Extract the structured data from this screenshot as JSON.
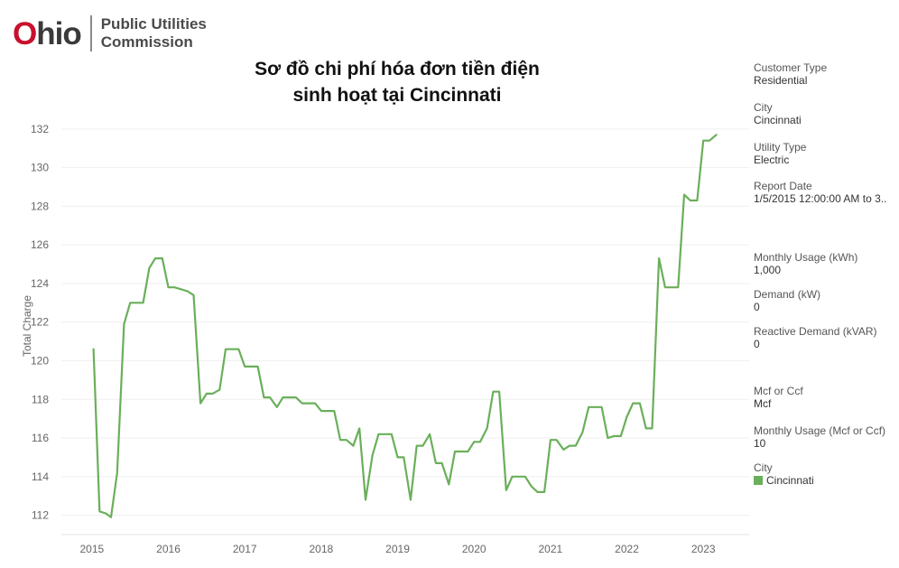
{
  "header": {
    "logo_word": "Ohio",
    "logo_line1": "Public Utilities",
    "logo_line2": "Commission"
  },
  "colors": {
    "series": "#6aaf5a",
    "logo_red": "#c8102e"
  },
  "filters": [
    {
      "label": "Customer Type",
      "value": "Residential"
    },
    {
      "label": "City",
      "value": "Cincinnati"
    },
    {
      "label": "Utility Type",
      "value": "Electric"
    },
    {
      "label": "Report Date",
      "value": "1/5/2015 12:00:00 AM to 3.."
    },
    {
      "label": "Monthly Usage (kWh)",
      "value": "1,000"
    },
    {
      "label": "Demand (kW)",
      "value": "0"
    },
    {
      "label": "Reactive Demand (kVAR)",
      "value": "0"
    },
    {
      "label": "Mcf or Ccf",
      "value": "Mcf"
    },
    {
      "label": "Monthly Usage (Mcf or Ccf)",
      "value": "10"
    }
  ],
  "legend": {
    "title": "City",
    "items": [
      {
        "label": "Cincinnati",
        "color": "#6aaf5a"
      }
    ]
  },
  "chart_data": {
    "type": "line",
    "title": "Sơ đồ chi phí hóa đơn tiền điện sinh hoạt tại Cincinnati",
    "title_lines": [
      "Sơ đồ chi phí hóa đơn tiền điện",
      "sinh hoạt tại Cincinnati"
    ],
    "xlabel": "",
    "ylabel": "Total Charge",
    "x_ticks": [
      "2015",
      "2016",
      "2017",
      "2018",
      "2019",
      "2020",
      "2021",
      "2022",
      "2023"
    ],
    "y_ticks": [
      "112",
      "114",
      "116",
      "118",
      "120",
      "122",
      "124",
      "126",
      "128",
      "130",
      "132"
    ],
    "xlim": [
      2014.6,
      2023.6
    ],
    "ylim": [
      111,
      132.6
    ],
    "grid": "horizontal",
    "series": [
      {
        "name": "Cincinnati",
        "color": "#6aaf5a",
        "x": [
          2015.02,
          2015.1,
          2015.18,
          2015.25,
          2015.33,
          2015.42,
          2015.5,
          2015.58,
          2015.67,
          2015.75,
          2015.83,
          2015.92,
          2016.0,
          2016.08,
          2016.17,
          2016.25,
          2016.33,
          2016.42,
          2016.5,
          2016.58,
          2016.67,
          2016.75,
          2016.83,
          2016.92,
          2017.0,
          2017.08,
          2017.17,
          2017.25,
          2017.33,
          2017.42,
          2017.5,
          2017.58,
          2017.67,
          2017.75,
          2017.83,
          2017.92,
          2018.0,
          2018.08,
          2018.17,
          2018.25,
          2018.33,
          2018.42,
          2018.5,
          2018.58,
          2018.67,
          2018.75,
          2018.83,
          2018.92,
          2019.0,
          2019.08,
          2019.17,
          2019.25,
          2019.33,
          2019.42,
          2019.5,
          2019.58,
          2019.67,
          2019.75,
          2019.83,
          2019.92,
          2020.0,
          2020.08,
          2020.17,
          2020.25,
          2020.33,
          2020.42,
          2020.5,
          2020.58,
          2020.67,
          2020.75,
          2020.83,
          2020.92,
          2021.0,
          2021.08,
          2021.17,
          2021.25,
          2021.33,
          2021.42,
          2021.5,
          2021.58,
          2021.67,
          2021.75,
          2021.83,
          2021.92,
          2022.0,
          2022.08,
          2022.17,
          2022.25,
          2022.33,
          2022.42,
          2022.5,
          2022.58,
          2022.67,
          2022.75,
          2022.83,
          2022.92,
          2023.0,
          2023.08,
          2023.17
        ],
        "values": [
          120.6,
          112.2,
          112.1,
          111.9,
          114.2,
          121.9,
          123.0,
          123.0,
          123.0,
          124.8,
          125.3,
          125.3,
          123.8,
          123.8,
          123.7,
          123.6,
          123.4,
          117.8,
          118.3,
          118.3,
          118.5,
          120.6,
          120.6,
          120.6,
          119.7,
          119.7,
          119.7,
          118.1,
          118.1,
          117.6,
          118.1,
          118.1,
          118.1,
          117.8,
          117.8,
          117.8,
          117.4,
          117.4,
          117.4,
          115.9,
          115.9,
          115.6,
          116.5,
          112.8,
          115.1,
          116.2,
          116.2,
          116.2,
          115.0,
          115.0,
          112.8,
          115.6,
          115.6,
          116.2,
          114.7,
          114.7,
          113.6,
          115.3,
          115.3,
          115.3,
          115.8,
          115.8,
          116.5,
          118.4,
          118.4,
          113.3,
          114.0,
          114.0,
          114.0,
          113.5,
          113.2,
          113.2,
          115.9,
          115.9,
          115.4,
          115.6,
          115.6,
          116.3,
          117.6,
          117.6,
          117.6,
          116.0,
          116.1,
          116.1,
          117.1,
          117.8,
          117.8,
          116.5,
          116.5,
          125.3,
          123.8,
          123.8,
          123.8,
          128.6,
          128.3,
          128.3,
          131.4,
          131.4,
          131.7
        ]
      }
    ]
  }
}
